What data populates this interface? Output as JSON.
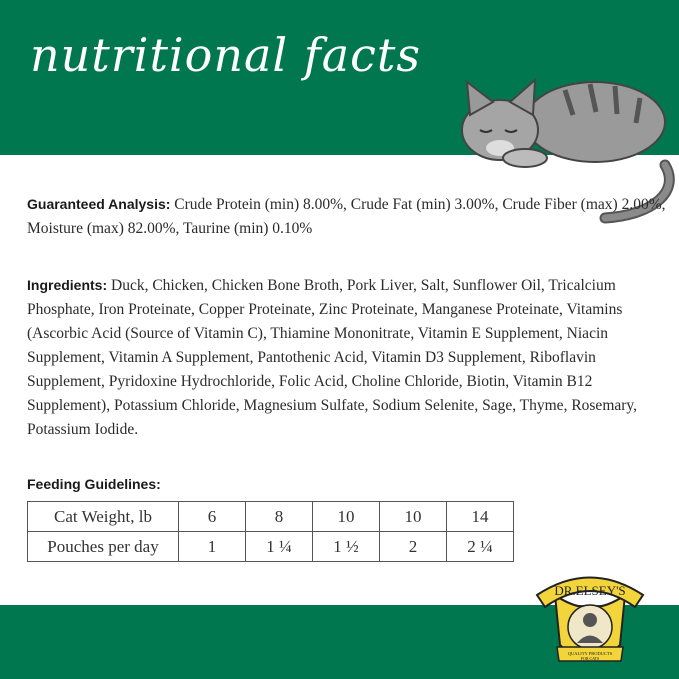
{
  "header": {
    "title": "nutritional facts"
  },
  "analysis": {
    "label": "Guaranteed Analysis:",
    "text": "Crude Protein (min) 8.00%, Crude Fat (min) 3.00%, Crude Fiber (max) 2.00%, Moisture (max) 82.00%, Taurine (min) 0.10%"
  },
  "ingredients": {
    "label": "Ingredients:",
    "text": "Duck, Chicken, Chicken Bone Broth, Pork Liver, Salt, Sunflower Oil, Tricalcium Phosphate, Iron Proteinate, Copper Proteinate, Zinc Proteinate, Manganese Proteinate, Vitamins (Ascorbic Acid (Source of Vitamin C), Thiamine Mononitrate, Vitamin E Supplement, Niacin Supplement, Vitamin A Supplement, Pantothenic Acid, Vitamin D3 Supplement, Riboflavin Supplement, Pyridoxine Hydrochloride, Folic Acid, Choline Chloride, Biotin, Vitamin B12 Supplement), Potassium Chloride, Magnesium Sulfate, Sodium Selenite, Sage, Thyme, Rosemary, Potassium Iodide."
  },
  "feeding": {
    "label": "Feeding Guidelines:",
    "rows": [
      [
        "Cat Weight, lb",
        "6",
        "8",
        "10",
        "10",
        "14"
      ],
      [
        "Pouches per day",
        "1",
        "1 ¼",
        "1 ½",
        "2",
        "2 ¼"
      ]
    ]
  },
  "logo": {
    "brand": "DR.ELSEY'S",
    "tagline": "QUALITY PRODUCTS FOR CATS"
  },
  "colors": {
    "brand_green": "#00774f",
    "logo_yellow": "#f3d43a"
  }
}
